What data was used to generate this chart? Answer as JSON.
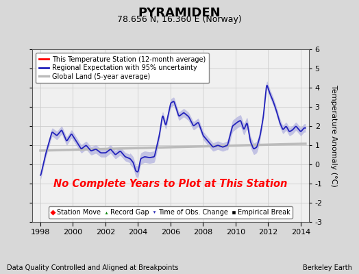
{
  "title": "PYRAMIDEN",
  "subtitle": "78.656 N, 16.360 E (Norway)",
  "ylabel": "Temperature Anomaly (°C)",
  "footer_left": "Data Quality Controlled and Aligned at Breakpoints",
  "footer_right": "Berkeley Earth",
  "no_data_text": "No Complete Years to Plot at This Station",
  "xlim": [
    1997.5,
    2014.5
  ],
  "ylim": [
    -3,
    6
  ],
  "yticks": [
    -3,
    -2,
    -1,
    0,
    1,
    2,
    3,
    4,
    5,
    6
  ],
  "xticks": [
    1998,
    2000,
    2002,
    2004,
    2006,
    2008,
    2010,
    2012,
    2014
  ],
  "bg_color": "#d8d8d8",
  "plot_bg_color": "#f0f0f0",
  "regional_line_color": "#2222bb",
  "regional_fill_color": "#aaaadd",
  "global_color": "#bbbbbb",
  "legend1_labels": [
    "This Temperature Station (12-month average)",
    "Regional Expectation with 95% uncertainty",
    "Global Land (5-year average)"
  ],
  "legend1_colors": [
    "red",
    "#2222bb",
    "#bbbbbb"
  ],
  "legend2_labels": [
    "Station Move",
    "Record Gap",
    "Time of Obs. Change",
    "Empirical Break"
  ],
  "legend2_markers": [
    "D",
    "^",
    "v",
    "s"
  ],
  "legend2_colors": [
    "red",
    "green",
    "#3333bb",
    "black"
  ]
}
